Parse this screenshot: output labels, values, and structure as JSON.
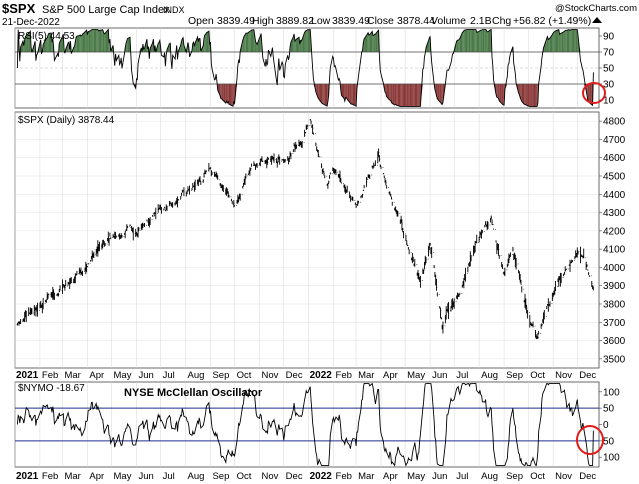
{
  "header": {
    "symbol": "$SPX",
    "name": "S&P 500 Large Cap Index",
    "exchange": "INDX",
    "watermark": "@StockCharts.com",
    "date": "21-Dec-2022",
    "open_label": "Open",
    "open": "3839.49",
    "high_label": "High",
    "high": "3889.82",
    "low_label": "Low",
    "low": "3839.49",
    "close_label": "Close",
    "close": "3878.44",
    "volume_label": "Volume",
    "volume": "2.1B",
    "chg_label": "Chg",
    "chg": "+56.82 (+1.49%)"
  },
  "colors": {
    "overbought_fill": "#4a7a48",
    "oversold_fill": "#8a3838",
    "line": "#000000",
    "guide": "#1f2f8f",
    "circle": "#e31a1a"
  },
  "chart_data": [
    {
      "type": "line",
      "label": "RSI(5) 44.53",
      "ylim": [
        0,
        100
      ],
      "y_ticks": [
        "10",
        "30",
        "50",
        "70",
        "90"
      ],
      "y_tick_values": [
        10,
        30,
        50,
        70,
        90
      ],
      "guides": [
        30,
        70
      ],
      "overbought": 70,
      "oversold": 30,
      "last_value": 44.53
    },
    {
      "type": "line",
      "label": "$SPX (Daily) 3878.44",
      "ylim": [
        3450,
        4850
      ],
      "y_ticks": [
        "3500",
        "3600",
        "3700",
        "3800",
        "3900",
        "4000",
        "4100",
        "4200",
        "4300",
        "4400",
        "4500",
        "4600",
        "4700",
        "4800"
      ],
      "y_tick_values": [
        3500,
        3600,
        3700,
        3800,
        3900,
        4000,
        4100,
        4200,
        4300,
        4400,
        4500,
        4600,
        4700,
        4800
      ],
      "x": [
        "2021-01-04",
        "2021-02-01",
        "2021-03-01",
        "2021-04-01",
        "2021-05-03",
        "2021-06-01",
        "2021-07-01",
        "2021-08-02",
        "2021-09-01",
        "2021-10-01",
        "2021-11-01",
        "2021-12-01",
        "2022-01-03",
        "2022-01-24",
        "2022-02-01",
        "2022-03-01",
        "2022-03-29",
        "2022-04-01",
        "2022-05-02",
        "2022-05-20",
        "2022-06-01",
        "2022-06-16",
        "2022-07-01",
        "2022-08-16",
        "2022-09-01",
        "2022-09-12",
        "2022-10-03",
        "2022-10-12",
        "2022-11-01",
        "2022-12-01",
        "2022-12-13",
        "2022-12-21"
      ],
      "values": [
        3700,
        3770,
        3880,
        4020,
        4180,
        4200,
        4320,
        4390,
        4520,
        4350,
        4610,
        4580,
        4790,
        4410,
        4520,
        4310,
        4630,
        4550,
        4150,
        3920,
        4100,
        3680,
        3830,
        4300,
        3970,
        4110,
        3680,
        3580,
        3860,
        4080,
        4020,
        3878
      ]
    },
    {
      "type": "line",
      "label": "$NYMO -18.67",
      "title": "NYSE McClellan Oscillator",
      "ylim": [
        -130,
        130
      ],
      "y_ticks": [
        "100",
        "50",
        "0",
        "-50",
        "-100"
      ],
      "y_tick_values": [
        100,
        50,
        0,
        -50,
        -100
      ],
      "y_tick_display": [
        "100",
        "50",
        "0",
        "50",
        "100"
      ],
      "guides": [
        50,
        -50
      ],
      "last_value": -18.67
    }
  ],
  "x_axis": {
    "labels": [
      {
        "text": "2021",
        "date": "2021-01-01",
        "bold": true
      },
      {
        "text": "Feb",
        "date": "2021-02-01"
      },
      {
        "text": "Mar",
        "date": "2021-03-01"
      },
      {
        "text": "Apr",
        "date": "2021-04-01"
      },
      {
        "text": "May",
        "date": "2021-05-01"
      },
      {
        "text": "Jun",
        "date": "2021-06-01"
      },
      {
        "text": "Jul",
        "date": "2021-07-01"
      },
      {
        "text": "Aug",
        "date": "2021-08-01"
      },
      {
        "text": "Sep",
        "date": "2021-09-01"
      },
      {
        "text": "Oct",
        "date": "2021-10-01"
      },
      {
        "text": "Nov",
        "date": "2021-11-01"
      },
      {
        "text": "Dec",
        "date": "2021-12-01"
      },
      {
        "text": "2022",
        "date": "2022-01-01",
        "bold": true
      },
      {
        "text": "Feb",
        "date": "2022-02-01"
      },
      {
        "text": "Mar",
        "date": "2022-03-01"
      },
      {
        "text": "Apr",
        "date": "2022-04-01"
      },
      {
        "text": "May",
        "date": "2022-05-01"
      },
      {
        "text": "Jun",
        "date": "2022-06-01"
      },
      {
        "text": "Jul",
        "date": "2022-07-01"
      },
      {
        "text": "Aug",
        "date": "2022-08-01"
      },
      {
        "text": "Sep",
        "date": "2022-09-01"
      },
      {
        "text": "Oct",
        "date": "2022-10-01"
      },
      {
        "text": "Nov",
        "date": "2022-11-01"
      },
      {
        "text": "Dec",
        "date": "2022-12-01"
      }
    ],
    "start": "2021-01-01",
    "end": "2022-12-28"
  }
}
